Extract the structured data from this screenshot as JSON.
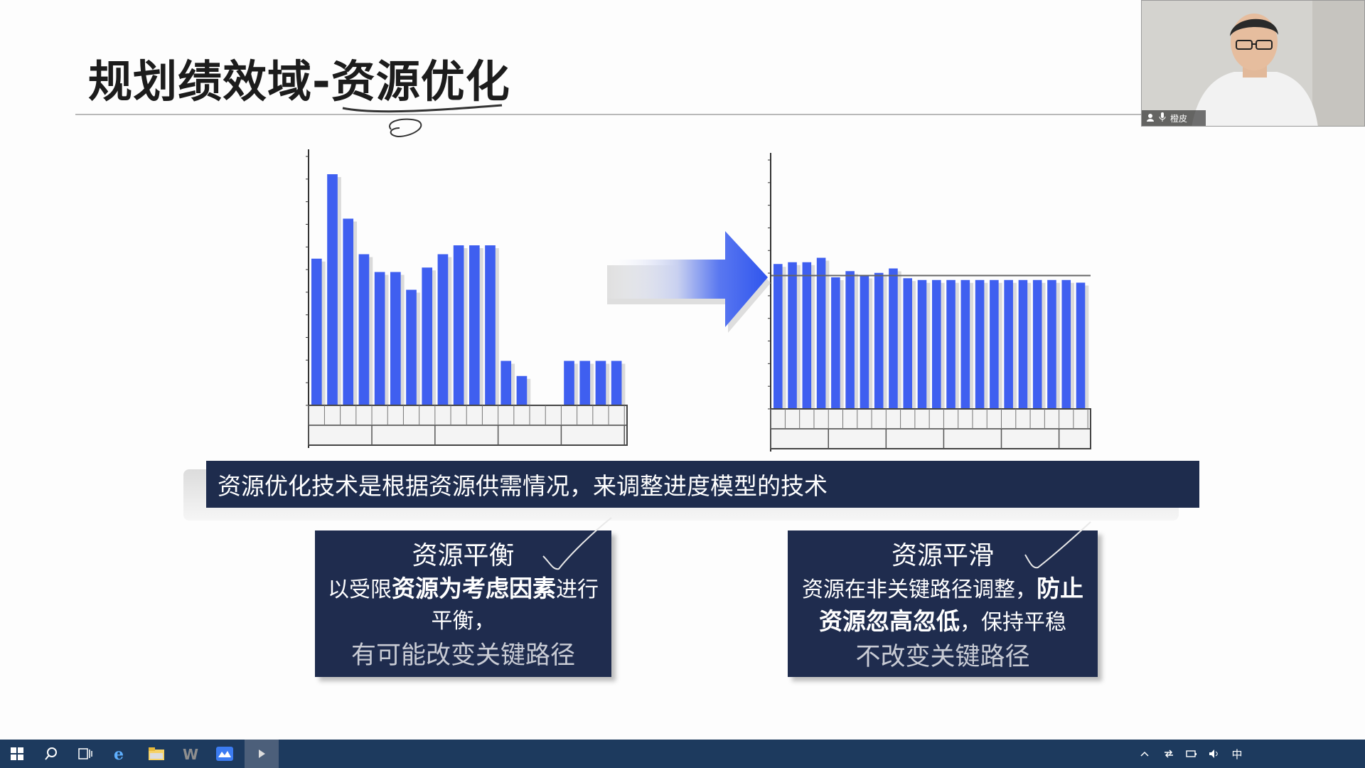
{
  "slide": {
    "title": "规划绩效域-资源优化",
    "banner": "资源优化技术是根据资源供需情况，来调整进度模型的技术"
  },
  "cards": {
    "leveling": {
      "title": "资源平衡",
      "line1_pre": "以受限",
      "line1_bold": "资源为考虑因素",
      "line1_post": "进行",
      "line2": "平衡，",
      "line3": "有可能改变关键路径"
    },
    "smoothing": {
      "title": "资源平滑",
      "line1_pre": "资源在非关键路径调整，",
      "line1_bold": "防止",
      "line2_bold": "资源忽高忽低",
      "line2_post": "，保持平稳",
      "line3": "不改变关键路径"
    }
  },
  "chart_data": [
    {
      "type": "bar",
      "values": [
        165,
        260,
        210,
        170,
        150,
        150,
        130,
        155,
        170,
        180,
        180,
        180,
        50,
        33,
        0,
        0,
        50,
        50,
        50,
        50
      ],
      "ylim": [
        0,
        280
      ],
      "bar_color": "#3f5ff0"
    },
    {
      "type": "bar",
      "values": [
        163,
        165,
        165,
        170,
        148,
        155,
        150,
        153,
        158,
        147,
        145,
        145,
        145,
        145,
        145,
        145,
        145,
        145,
        145,
        145,
        145,
        142
      ],
      "ylim": [
        0,
        280
      ],
      "reference_line": 150,
      "bar_color": "#3f5ff0"
    }
  ],
  "webcam": {
    "name": "橙皮"
  },
  "taskbar": {
    "icons": [
      "windows-start-icon",
      "search-icon",
      "task-view-icon",
      "edge-icon",
      "file-explorer-icon",
      "wps-icon",
      "meeting-app-icon",
      "media-player-icon"
    ],
    "ime": "中",
    "color": "#1d3a5e"
  }
}
